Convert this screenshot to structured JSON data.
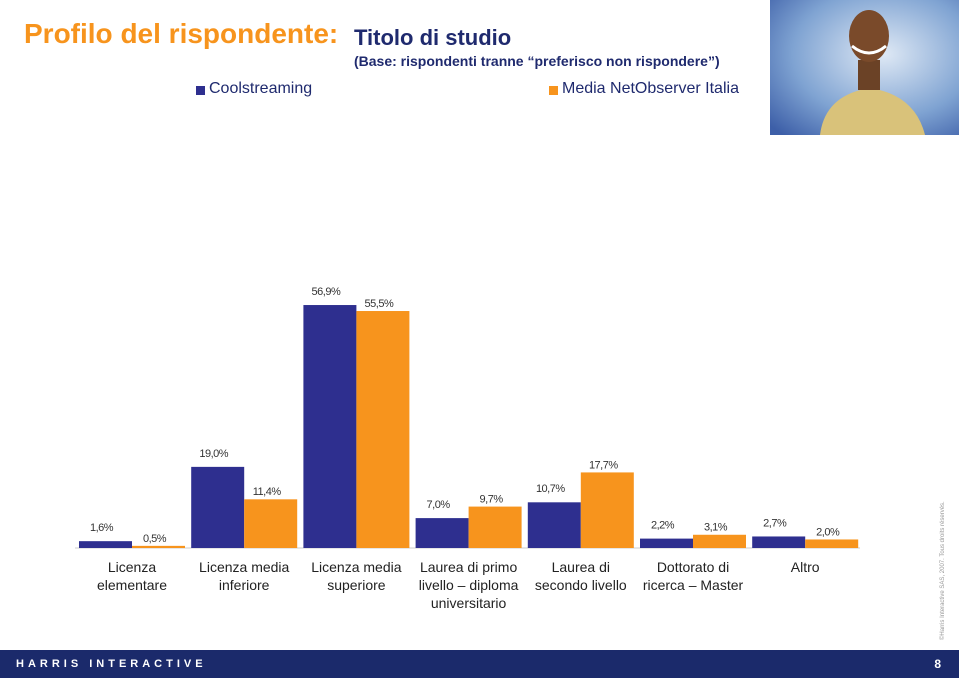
{
  "chart_data": {
    "type": "bar",
    "title": "Profilo del rispondente:",
    "subtitle": "Titolo di studio",
    "note": "(Base: rispondenti tranne “preferisco non rispondere”)",
    "categories": [
      "Licenza elementare",
      "Licenza media inferiore",
      "Licenza media superiore",
      "Laurea di primo livello – diploma universitario",
      "Laurea di secondo livello",
      "Dottorato di ricerca – Master",
      "Altro"
    ],
    "series": [
      {
        "name": "Coolstreaming",
        "color": "#2e2f8f",
        "values": [
          1.6,
          19.0,
          56.9,
          7.0,
          10.7,
          2.2,
          2.7
        ],
        "value_labels": [
          "1,6%",
          "19,0%",
          "56,9%",
          "7,0%",
          "10,7%",
          "2,2%",
          "2,7%"
        ]
      },
      {
        "name": "Media NetObserver Italia",
        "color": "#f7941d",
        "values": [
          0.5,
          11.4,
          55.5,
          9.7,
          17.7,
          3.1,
          2.0
        ],
        "value_labels": [
          "0,5%",
          "11,4%",
          "55,5%",
          "9,7%",
          "17,7%",
          "3,1%",
          "2,0%"
        ]
      }
    ]
  },
  "footer": {
    "brand": "HARRIS INTERACTIVE",
    "page": "8",
    "copyright": "©Harris Interactive SAS, 2007. Tous droits réservés."
  }
}
